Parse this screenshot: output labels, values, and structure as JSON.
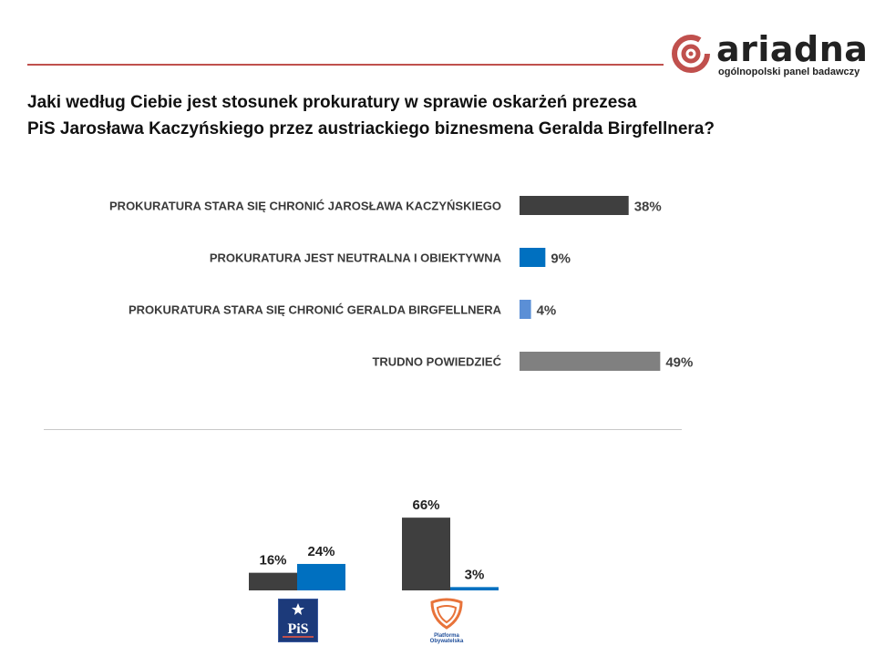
{
  "brand": {
    "name": "ariadna",
    "tagline": "ogólnopolski panel badawczy",
    "accent_color": "#c0504d"
  },
  "question": {
    "line1": "Jaki według Ciebie jest stosunek prokuratury w sprawie oskarżeń prezesa",
    "line2": "PiS Jarosława Kaczyńskiego przez austriackiego biznesmena Geralda Birgfellnera?"
  },
  "chart_data": [
    {
      "type": "bar",
      "orientation": "horizontal",
      "categories": [
        "PROKURATURA STARA SIĘ CHRONIĆ JAROSŁAWA KACZYŃSKIEGO",
        "PROKURATURA JEST NEUTRALNA  I OBIEKTYWNA",
        "PROKURATURA STARA SIĘ CHRONIĆ GERALDA BIRGFELLNERA",
        "TRUDNO POWIEDZIEĆ"
      ],
      "values": [
        38,
        9,
        4,
        49
      ],
      "labels": [
        "38%",
        "9%",
        "4%",
        "49%"
      ],
      "colors": [
        "#3f3f3f",
        "#0070c0",
        "#5b8fd6",
        "#808080"
      ],
      "unit": "%",
      "xlim": [
        0,
        100
      ],
      "grid": false,
      "legend": "none"
    },
    {
      "type": "bar",
      "orientation": "vertical",
      "groups": [
        "PiS",
        "Platforma Obywatelska"
      ],
      "series": [
        {
          "values": [
            16,
            66
          ],
          "labels": [
            "16%",
            "66%"
          ],
          "color": "#3f3f3f"
        },
        {
          "values": [
            24,
            3
          ],
          "labels": [
            "24%",
            "3%"
          ],
          "color": "#0070c0"
        }
      ],
      "unit": "%",
      "ylim": [
        0,
        100
      ],
      "grid": false,
      "legend": "none"
    }
  ],
  "party_logos": {
    "pis_icon": "pis-logo-icon",
    "pis_text": "PiS",
    "po_icon": "platforma-obywatelska-logo-icon",
    "po_text_line1": "Platforma",
    "po_text_line2": "Obywatelska"
  }
}
